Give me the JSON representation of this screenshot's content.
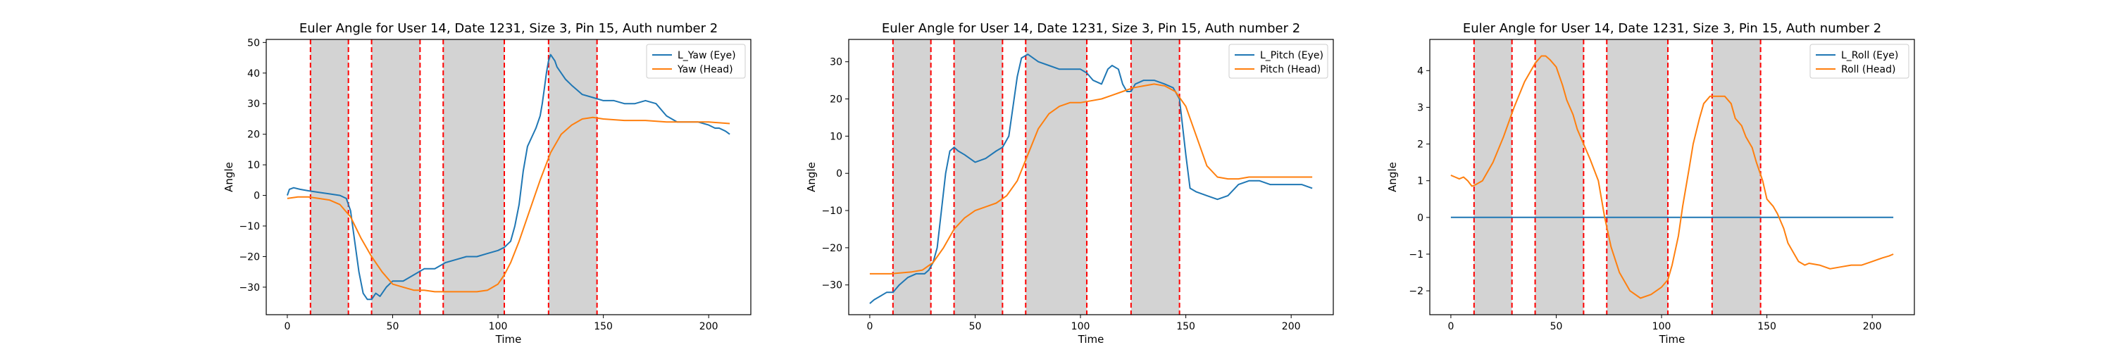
{
  "chart_data": [
    {
      "type": "line",
      "title": "Euler Angle for User 14, Date 1231, Size 3, Pin 15, Auth number 2",
      "xlabel": "Time",
      "ylabel": "Angle",
      "xlim": [
        -10,
        220
      ],
      "ylim": [
        -39,
        51
      ],
      "xticks": [
        0,
        50,
        100,
        150,
        200
      ],
      "yticks": [
        -30,
        -20,
        -10,
        0,
        10,
        20,
        30,
        40,
        50
      ],
      "legend": "top-right",
      "shaded_intervals": [
        [
          11,
          29
        ],
        [
          40,
          63
        ],
        [
          74,
          103
        ],
        [
          124,
          147
        ]
      ],
      "series": [
        {
          "name": "L_Yaw (Eye)",
          "color": "#1f77b4",
          "x": [
            0,
            1,
            3,
            6,
            10,
            15,
            20,
            25,
            28,
            30,
            32,
            34,
            36,
            38,
            40,
            42,
            44,
            47,
            50,
            55,
            60,
            65,
            70,
            75,
            80,
            85,
            90,
            95,
            100,
            103,
            106,
            108,
            110,
            112,
            114,
            116,
            118,
            120,
            121,
            122,
            123,
            124,
            125,
            126,
            127,
            128,
            130,
            132,
            135,
            140,
            145,
            150,
            155,
            160,
            165,
            170,
            175,
            180,
            185,
            190,
            195,
            200,
            203,
            205,
            208,
            210
          ],
          "y": [
            0,
            2,
            2.5,
            2,
            1.5,
            1,
            0.5,
            0,
            -1,
            -5,
            -15,
            -25,
            -32,
            -34,
            -34,
            -32,
            -33,
            -30,
            -28,
            -28,
            -26,
            -24,
            -24,
            -22,
            -21,
            -20,
            -20,
            -19,
            -18,
            -17,
            -15,
            -10,
            -3,
            8,
            16,
            19,
            22,
            26,
            30,
            35,
            40,
            44,
            46,
            45,
            44,
            42,
            40,
            38,
            36,
            33,
            32,
            31,
            31,
            30,
            30,
            31,
            30,
            26,
            24,
            24,
            24,
            23,
            22,
            22,
            21,
            20
          ]
        },
        {
          "name": "Yaw (Head)",
          "color": "#ff7f0e",
          "x": [
            0,
            5,
            10,
            15,
            20,
            25,
            30,
            35,
            40,
            45,
            50,
            55,
            60,
            65,
            70,
            75,
            80,
            85,
            90,
            95,
            100,
            103,
            106,
            110,
            115,
            120,
            125,
            130,
            135,
            140,
            145,
            150,
            160,
            170,
            180,
            190,
            200,
            210
          ],
          "y": [
            -1,
            -0.5,
            -0.5,
            -1,
            -1.5,
            -3,
            -7,
            -14,
            -20,
            -25,
            -29,
            -30,
            -31,
            -31,
            -31.5,
            -31.5,
            -31.5,
            -31.5,
            -31.5,
            -31,
            -29,
            -26,
            -22,
            -15,
            -5,
            5,
            14,
            20,
            23,
            25,
            25.5,
            25,
            24.5,
            24.5,
            24,
            24,
            24,
            23.5
          ]
        }
      ]
    },
    {
      "type": "line",
      "title": "Euler Angle for User 14, Date 1231, Size 3, Pin 15, Auth number 2",
      "xlabel": "Time",
      "ylabel": "Angle",
      "xlim": [
        -10,
        220
      ],
      "ylim": [
        -38,
        36
      ],
      "xticks": [
        0,
        50,
        100,
        150,
        200
      ],
      "yticks": [
        -30,
        -20,
        -10,
        0,
        10,
        20,
        30
      ],
      "legend": "top-right",
      "shaded_intervals": [
        [
          11,
          29
        ],
        [
          40,
          63
        ],
        [
          74,
          103
        ],
        [
          124,
          147
        ]
      ],
      "series": [
        {
          "name": "L_Pitch (Eye)",
          "color": "#1f77b4",
          "x": [
            0,
            2,
            5,
            8,
            11,
            14,
            18,
            22,
            26,
            28,
            30,
            32,
            34,
            36,
            38,
            40,
            42,
            45,
            50,
            55,
            60,
            63,
            66,
            68,
            70,
            72,
            75,
            80,
            85,
            90,
            95,
            100,
            103,
            106,
            110,
            113,
            115,
            118,
            120,
            122,
            124,
            126,
            130,
            135,
            140,
            144,
            147,
            150,
            152,
            155,
            160,
            165,
            170,
            175,
            180,
            185,
            190,
            195,
            200,
            205,
            210
          ],
          "y": [
            -35,
            -34,
            -33,
            -32,
            -32,
            -30,
            -28,
            -27,
            -27,
            -26,
            -24,
            -20,
            -10,
            0,
            6,
            7,
            6,
            5,
            3,
            4,
            6,
            7,
            10,
            18,
            26,
            31,
            32,
            30,
            29,
            28,
            28,
            28,
            27,
            25,
            24,
            28,
            29,
            28,
            24,
            22,
            22,
            24,
            25,
            25,
            24,
            23,
            20,
            5,
            -4,
            -5,
            -6,
            -7,
            -6,
            -3,
            -2,
            -2,
            -3,
            -3,
            -3,
            -3,
            -4
          ]
        },
        {
          "name": "Pitch (Head)",
          "color": "#ff7f0e",
          "x": [
            0,
            10,
            20,
            25,
            30,
            35,
            40,
            45,
            50,
            55,
            60,
            65,
            70,
            75,
            80,
            85,
            90,
            95,
            100,
            105,
            110,
            115,
            120,
            125,
            130,
            135,
            140,
            145,
            150,
            155,
            160,
            165,
            170,
            175,
            180,
            190,
            200,
            210
          ],
          "y": [
            -27,
            -27,
            -26.5,
            -26,
            -24,
            -20,
            -15,
            -12,
            -10,
            -9,
            -8,
            -6,
            -2,
            5,
            12,
            16,
            18,
            19,
            19,
            19.5,
            20,
            21,
            22,
            23,
            23.5,
            24,
            23.5,
            22,
            18,
            10,
            2,
            -1,
            -1.5,
            -1.5,
            -1,
            -1,
            -1,
            -1
          ]
        }
      ]
    },
    {
      "type": "line",
      "title": "Euler Angle for User 14, Date 1231, Size 3, Pin 15, Auth number 2",
      "xlabel": "Time",
      "ylabel": "Angle",
      "xlim": [
        -10,
        220
      ],
      "ylim": [
        -2.65,
        4.85
      ],
      "xticks": [
        0,
        50,
        100,
        150,
        200
      ],
      "yticks": [
        -2,
        -1,
        0,
        1,
        2,
        3,
        4
      ],
      "legend": "top-right",
      "shaded_intervals": [
        [
          11,
          29
        ],
        [
          40,
          63
        ],
        [
          74,
          103
        ],
        [
          124,
          147
        ]
      ],
      "series": [
        {
          "name": "L_Roll (Eye)",
          "color": "#1f77b4",
          "x": [
            0,
            210
          ],
          "y": [
            0,
            0
          ]
        },
        {
          "name": "Roll (Head)",
          "color": "#ff7f0e",
          "x": [
            0,
            2,
            4,
            6,
            8,
            10,
            12,
            15,
            20,
            25,
            30,
            35,
            40,
            43,
            45,
            47,
            50,
            53,
            55,
            58,
            60,
            63,
            66,
            70,
            73,
            76,
            80,
            85,
            90,
            95,
            100,
            103,
            105,
            108,
            110,
            113,
            115,
            118,
            120,
            123,
            125,
            128,
            130,
            133,
            135,
            138,
            140,
            143,
            145,
            148,
            150,
            153,
            155,
            158,
            160,
            163,
            165,
            168,
            170,
            175,
            180,
            185,
            190,
            195,
            200,
            205,
            208,
            210
          ],
          "y": [
            1.15,
            1.1,
            1.05,
            1.1,
            1.0,
            0.85,
            0.9,
            1.0,
            1.5,
            2.2,
            3.0,
            3.7,
            4.2,
            4.4,
            4.4,
            4.3,
            4.1,
            3.6,
            3.2,
            2.8,
            2.4,
            2.0,
            1.6,
            1.0,
            0.0,
            -0.8,
            -1.5,
            -2.0,
            -2.2,
            -2.1,
            -1.9,
            -1.7,
            -1.3,
            -0.5,
            0.3,
            1.3,
            2.0,
            2.7,
            3.1,
            3.3,
            3.3,
            3.3,
            3.3,
            3.1,
            2.7,
            2.5,
            2.2,
            1.9,
            1.5,
            1.0,
            0.5,
            0.3,
            0.1,
            -0.3,
            -0.7,
            -1.0,
            -1.2,
            -1.3,
            -1.25,
            -1.3,
            -1.4,
            -1.35,
            -1.3,
            -1.3,
            -1.2,
            -1.1,
            -1.05,
            -1.0
          ]
        }
      ]
    }
  ]
}
